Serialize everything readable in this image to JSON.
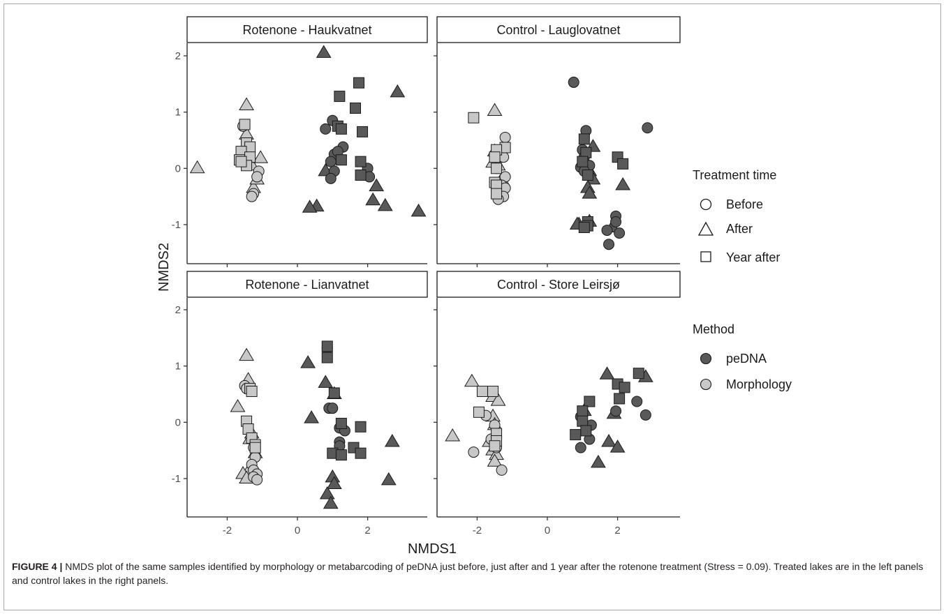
{
  "chart_data": {
    "type": "scatter",
    "xlabel": "NMDS1",
    "ylabel": "NMDS2",
    "xlim": [
      -3.2,
      3.7
    ],
    "ylim": [
      -1.6,
      2.2
    ],
    "x_ticks": [
      -2,
      0,
      2
    ],
    "y_ticks": [
      2,
      1,
      0,
      -1
    ],
    "x_tick_labels": [
      "-2",
      "0",
      "2"
    ],
    "y_tick_labels": [
      "2",
      "1",
      "0",
      "-1"
    ],
    "grid": false,
    "legend": {
      "placement": "right",
      "shape_title": "Treatment time",
      "shape_items": [
        {
          "shape": "circle",
          "label": "Before"
        },
        {
          "shape": "triangle",
          "label": "After"
        },
        {
          "shape": "square",
          "label": "Year after"
        }
      ],
      "fill_title": "Method",
      "fill_items": [
        {
          "method": "peDNA",
          "label": "peDNA",
          "color": "#595959"
        },
        {
          "method": "morph",
          "label": "Morphology",
          "color": "#c8c8c8"
        }
      ]
    },
    "panels": [
      {
        "title": "Rotenone - Haukvatnet",
        "series": [
          {
            "method": "morph",
            "shape": "triangle",
            "points": [
              [
                -2.85,
                0.0
              ],
              [
                -1.45,
                1.12
              ],
              [
                -1.45,
                0.6
              ],
              [
                -1.5,
                0.2
              ],
              [
                -1.3,
                0.05
              ],
              [
                -1.05,
                0.18
              ],
              [
                -1.25,
                -0.35
              ],
              [
                -1.15,
                -0.2
              ]
            ]
          },
          {
            "method": "morph",
            "shape": "circle",
            "points": [
              [
                -1.55,
                0.75
              ],
              [
                -1.35,
                0.25
              ],
              [
                -1.1,
                -0.05
              ],
              [
                -1.15,
                -0.15
              ],
              [
                -1.25,
                -0.45
              ],
              [
                -1.3,
                -0.5
              ]
            ]
          },
          {
            "method": "morph",
            "shape": "square",
            "points": [
              [
                -1.5,
                0.78
              ],
              [
                -1.45,
                0.45
              ],
              [
                -1.35,
                0.38
              ],
              [
                -1.6,
                0.3
              ],
              [
                -1.35,
                0.2
              ],
              [
                -1.65,
                0.15
              ],
              [
                -1.45,
                0.05
              ],
              [
                -1.6,
                0.12
              ]
            ]
          },
          {
            "method": "peDNA",
            "shape": "triangle",
            "points": [
              [
                0.75,
                2.05
              ],
              [
                2.85,
                1.35
              ],
              [
                0.8,
                -0.05
              ],
              [
                2.25,
                -0.32
              ],
              [
                2.15,
                -0.57
              ],
              [
                2.5,
                -0.67
              ],
              [
                0.55,
                -0.68
              ],
              [
                0.35,
                -0.7
              ],
              [
                3.45,
                -0.77
              ]
            ]
          },
          {
            "method": "peDNA",
            "shape": "circle",
            "points": [
              [
                1.0,
                0.85
              ],
              [
                0.8,
                0.7
              ],
              [
                1.3,
                0.38
              ],
              [
                1.05,
                0.25
              ],
              [
                1.15,
                0.3
              ],
              [
                0.95,
                0.12
              ],
              [
                1.05,
                -0.05
              ],
              [
                2.0,
                0.0
              ],
              [
                0.95,
                -0.18
              ],
              [
                2.05,
                -0.15
              ]
            ]
          },
          {
            "method": "peDNA",
            "shape": "square",
            "points": [
              [
                1.75,
                1.52
              ],
              [
                1.2,
                1.28
              ],
              [
                1.65,
                1.07
              ],
              [
                1.15,
                0.75
              ],
              [
                1.25,
                0.7
              ],
              [
                1.85,
                0.65
              ],
              [
                1.25,
                0.15
              ],
              [
                1.8,
                0.12
              ],
              [
                1.8,
                -0.12
              ]
            ]
          }
        ]
      },
      {
        "title": "Control - Lauglovatnet",
        "series": [
          {
            "method": "morph",
            "shape": "triangle",
            "points": [
              [
                -1.5,
                1.02
              ],
              [
                -1.5,
                0.3
              ],
              [
                -1.55,
                0.1
              ],
              [
                -1.4,
                0.05
              ],
              [
                -1.3,
                -0.2
              ]
            ]
          },
          {
            "method": "morph",
            "shape": "circle",
            "points": [
              [
                -1.2,
                0.55
              ],
              [
                -1.25,
                0.2
              ],
              [
                -1.45,
                0.0
              ],
              [
                -1.2,
                -0.15
              ],
              [
                -1.3,
                -0.3
              ],
              [
                -1.2,
                -0.35
              ],
              [
                -1.25,
                -0.5
              ],
              [
                -1.4,
                -0.55
              ]
            ]
          },
          {
            "method": "morph",
            "shape": "square",
            "points": [
              [
                -2.1,
                0.9
              ],
              [
                -1.2,
                0.37
              ],
              [
                -1.45,
                0.33
              ],
              [
                -1.5,
                0.2
              ],
              [
                -1.45,
                0.0
              ],
              [
                -1.5,
                -0.25
              ],
              [
                -1.45,
                -0.3
              ],
              [
                -1.45,
                -0.45
              ]
            ]
          },
          {
            "method": "peDNA",
            "shape": "triangle",
            "points": [
              [
                1.3,
                0.38
              ],
              [
                1.05,
                0.15
              ],
              [
                1.2,
                -0.05
              ],
              [
                1.3,
                -0.2
              ],
              [
                1.15,
                -0.35
              ],
              [
                1.2,
                -0.45
              ],
              [
                2.15,
                -0.3
              ],
              [
                0.9,
                -1.0
              ],
              [
                1.2,
                -0.95
              ],
              [
                1.85,
                -1.05
              ],
              [
                0.85,
                -1.0
              ]
            ]
          },
          {
            "method": "peDNA",
            "shape": "circle",
            "points": [
              [
                0.75,
                1.53
              ],
              [
                2.85,
                0.72
              ],
              [
                1.1,
                0.67
              ],
              [
                1.0,
                0.33
              ],
              [
                1.05,
                0.2
              ],
              [
                1.2,
                0.05
              ],
              [
                0.95,
                0.02
              ],
              [
                1.05,
                -0.05
              ],
              [
                1.95,
                -0.85
              ],
              [
                1.95,
                -0.95
              ],
              [
                1.7,
                -1.1
              ],
              [
                2.05,
                -1.15
              ],
              [
                1.75,
                -1.35
              ]
            ]
          },
          {
            "method": "peDNA",
            "shape": "square",
            "points": [
              [
                1.05,
                0.52
              ],
              [
                2.0,
                0.2
              ],
              [
                2.15,
                0.08
              ],
              [
                1.1,
                0.28
              ],
              [
                1.0,
                0.12
              ],
              [
                1.15,
                -0.12
              ],
              [
                1.15,
                -0.95
              ],
              [
                1.15,
                -1.02
              ],
              [
                1.05,
                -1.05
              ]
            ]
          }
        ]
      },
      {
        "title": "Rotenone - Lianvatnet",
        "series": [
          {
            "method": "morph",
            "shape": "triangle",
            "points": [
              [
                -1.45,
                1.18
              ],
              [
                -1.4,
                0.75
              ],
              [
                -1.7,
                0.27
              ],
              [
                -1.3,
                -0.2
              ],
              [
                -1.35,
                -0.3
              ],
              [
                -1.2,
                -0.55
              ],
              [
                -1.4,
                -0.88
              ],
              [
                -1.55,
                -0.92
              ],
              [
                -1.45,
                -1.0
              ]
            ]
          },
          {
            "method": "morph",
            "shape": "circle",
            "points": [
              [
                -1.5,
                0.65
              ],
              [
                -1.45,
                0.6
              ],
              [
                -1.25,
                -0.45
              ],
              [
                -1.2,
                -0.62
              ],
              [
                -1.3,
                -0.75
              ],
              [
                -1.25,
                -0.85
              ],
              [
                -1.15,
                -0.92
              ],
              [
                -1.25,
                -0.97
              ],
              [
                -1.15,
                -1.02
              ]
            ]
          },
          {
            "method": "morph",
            "shape": "square",
            "points": [
              [
                -1.35,
                0.6
              ],
              [
                -1.3,
                0.55
              ],
              [
                -1.45,
                0.02
              ],
              [
                -1.4,
                -0.12
              ],
              [
                -1.3,
                -0.28
              ],
              [
                -1.2,
                -0.4
              ],
              [
                -1.2,
                -0.45
              ]
            ]
          },
          {
            "method": "peDNA",
            "shape": "triangle",
            "points": [
              [
                0.3,
                1.05
              ],
              [
                0.8,
                0.7
              ],
              [
                1.05,
                0.5
              ],
              [
                0.4,
                0.07
              ],
              [
                2.7,
                -0.35
              ],
              [
                1.0,
                -0.98
              ],
              [
                1.05,
                -1.1
              ],
              [
                2.6,
                -1.03
              ],
              [
                0.85,
                -1.28
              ],
              [
                0.95,
                -1.45
              ]
            ]
          },
          {
            "method": "peDNA",
            "shape": "circle",
            "points": [
              [
                0.85,
                1.32
              ],
              [
                0.9,
                0.25
              ],
              [
                1.0,
                0.25
              ],
              [
                1.2,
                -0.1
              ],
              [
                1.35,
                -0.15
              ],
              [
                1.2,
                -0.35
              ],
              [
                1.2,
                -0.42
              ]
            ]
          },
          {
            "method": "peDNA",
            "shape": "square",
            "points": [
              [
                0.85,
                1.35
              ],
              [
                0.85,
                1.15
              ],
              [
                1.05,
                0.52
              ],
              [
                1.25,
                -0.02
              ],
              [
                1.8,
                -0.08
              ],
              [
                1.6,
                -0.45
              ],
              [
                1.0,
                -0.55
              ],
              [
                1.25,
                -0.58
              ],
              [
                1.8,
                -0.55
              ]
            ]
          }
        ]
      },
      {
        "title": "Control - Store Leirsjø",
        "series": [
          {
            "method": "morph",
            "shape": "triangle",
            "points": [
              [
                -2.15,
                0.72
              ],
              [
                -1.55,
                0.45
              ],
              [
                -1.4,
                0.38
              ],
              [
                -1.55,
                0.1
              ],
              [
                -1.5,
                -0.05
              ],
              [
                -2.7,
                -0.25
              ],
              [
                -1.65,
                -0.35
              ],
              [
                -1.55,
                -0.5
              ],
              [
                -1.45,
                -0.58
              ],
              [
                -1.5,
                -0.7
              ]
            ]
          },
          {
            "method": "morph",
            "shape": "circle",
            "points": [
              [
                -1.75,
                0.12
              ],
              [
                -1.5,
                -0.05
              ],
              [
                -1.6,
                -0.3
              ],
              [
                -1.45,
                -0.45
              ],
              [
                -2.1,
                -0.53
              ],
              [
                -1.3,
                -0.85
              ]
            ]
          },
          {
            "method": "morph",
            "shape": "square",
            "points": [
              [
                -1.55,
                0.55
              ],
              [
                -1.85,
                0.55
              ],
              [
                -1.95,
                0.18
              ],
              [
                -1.45,
                -0.2
              ],
              [
                -1.45,
                -0.33
              ],
              [
                -1.5,
                -0.42
              ]
            ]
          },
          {
            "method": "peDNA",
            "shape": "triangle",
            "points": [
              [
                1.7,
                0.85
              ],
              [
                2.8,
                0.8
              ],
              [
                1.05,
                0.2
              ],
              [
                1.9,
                0.15
              ],
              [
                1.75,
                -0.35
              ],
              [
                2.0,
                -0.45
              ],
              [
                1.45,
                -0.72
              ]
            ]
          },
          {
            "method": "peDNA",
            "shape": "circle",
            "points": [
              [
                2.55,
                0.37
              ],
              [
                1.95,
                0.2
              ],
              [
                2.8,
                0.13
              ],
              [
                0.95,
                0.1
              ],
              [
                1.25,
                -0.05
              ],
              [
                1.2,
                -0.3
              ],
              [
                0.95,
                -0.45
              ]
            ]
          },
          {
            "method": "peDNA",
            "shape": "square",
            "points": [
              [
                2.6,
                0.87
              ],
              [
                2.0,
                0.68
              ],
              [
                2.2,
                0.62
              ],
              [
                2.05,
                0.42
              ],
              [
                1.2,
                0.37
              ],
              [
                1.0,
                0.2
              ],
              [
                1.0,
                0.02
              ],
              [
                1.1,
                -0.15
              ],
              [
                0.8,
                -0.22
              ]
            ]
          }
        ]
      }
    ]
  },
  "caption": {
    "label": "FIGURE 4 |",
    "text": " NMDS plot of the same samples identified by morphology or metabarcoding of peDNA just before, just after and 1 year after the rotenone treatment (Stress = 0.09). Treated lakes are in the left panels and control lakes in the right panels."
  }
}
